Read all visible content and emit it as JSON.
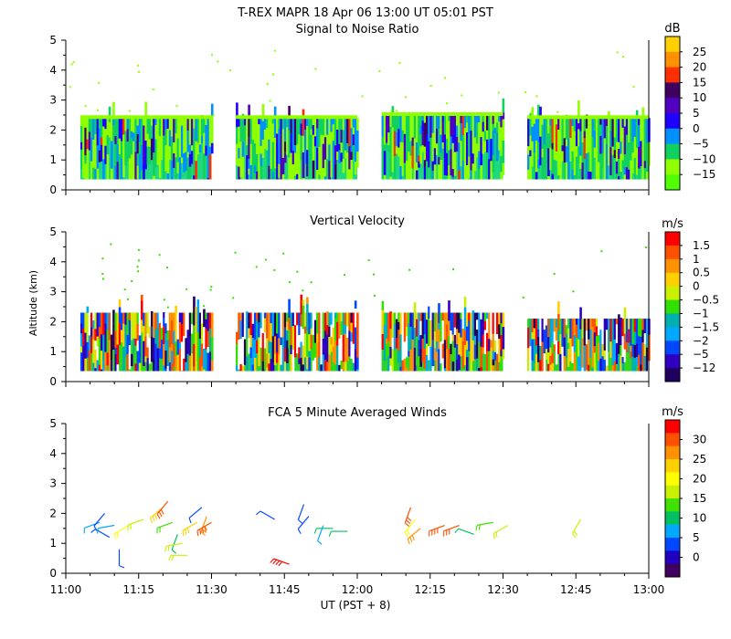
{
  "title": "T-REX  MAPR 18 Apr 06  13:00 UT  05:01  PST",
  "x_axis": {
    "label": "UT  (PST + 8)",
    "ticks": [
      "11:00",
      "11:15",
      "11:30",
      "11:45",
      "12:00",
      "12:15",
      "12:30",
      "12:45",
      "13:00"
    ],
    "range_minutes": [
      0,
      120
    ]
  },
  "y_axis": {
    "label": "Altitude (km)",
    "ticks": [
      "0",
      "1",
      "2",
      "3",
      "4",
      "5"
    ],
    "range": [
      0,
      5
    ]
  },
  "colors": {
    "scale": [
      "#90ff00",
      "#30e000",
      "#10c880",
      "#00a8ff",
      "#0048ff",
      "#2000ff",
      "#5000c0",
      "#400060",
      "#ff2000",
      "#ff7000",
      "#ffb000",
      "#ffe000",
      "#ffff00"
    ],
    "background": "#ffffff"
  },
  "chart_data": [
    {
      "type": "heatmap",
      "title": "Signal to Noise Ratio",
      "unit": "dB",
      "colorbar": {
        "labels": [
          "25",
          "20",
          "15",
          "10",
          "5",
          "0",
          "−5",
          "−10",
          "−15"
        ],
        "colors": [
          "#ffd000",
          "#ff9000",
          "#ff3000",
          "#400060",
          "#5000c0",
          "#2000ff",
          "#0090ff",
          "#10d060",
          "#90ff00",
          "#50ff00"
        ]
      },
      "blocks": [
        {
          "start_min": 3,
          "end_min": 30,
          "top_km": 2.4
        },
        {
          "start_min": 35,
          "end_min": 60,
          "top_km": 2.4
        },
        {
          "start_min": 65,
          "end_min": 90,
          "top_km": 2.5
        },
        {
          "start_min": 95,
          "end_min": 120,
          "top_km": 2.4
        }
      ]
    },
    {
      "type": "heatmap",
      "title": "Vertical Velocity",
      "unit": "m/s",
      "colorbar": {
        "labels": [
          "1.5",
          "1",
          "0.5",
          "0",
          "−0.5",
          "−1",
          "−1.5",
          "−2",
          "−5",
          "−12"
        ],
        "colors": [
          "#ff0000",
          "#ff5000",
          "#ff9000",
          "#ffd000",
          "#c8f000",
          "#30e000",
          "#00b0b0",
          "#00a8ff",
          "#0048ff",
          "#3000c0",
          "#200060"
        ]
      },
      "blocks": [
        {
          "start_min": 3,
          "end_min": 30,
          "top_km": 2.3
        },
        {
          "start_min": 35,
          "end_min": 60,
          "top_km": 2.3
        },
        {
          "start_min": 65,
          "end_min": 90,
          "top_km": 2.3
        },
        {
          "start_min": 95,
          "end_min": 120,
          "top_km": 2.1
        }
      ]
    },
    {
      "type": "scatter",
      "title": "FCA 5 Minute Averaged Winds",
      "unit": "m/s",
      "colorbar": {
        "labels": [
          "30",
          "25",
          "20",
          "15",
          "10",
          "5",
          "0"
        ],
        "colors": [
          "#ff0000",
          "#ff5000",
          "#ff9000",
          "#ffd000",
          "#ffff00",
          "#c8f000",
          "#40e000",
          "#00c060",
          "#00a8ff",
          "#0048ff",
          "#2000c0",
          "#400060"
        ]
      },
      "winds": [
        {
          "t": 7,
          "alt": 1.7,
          "speed": 8,
          "dir": 250
        },
        {
          "t": 8,
          "alt": 2.0,
          "speed": 5,
          "dir": 220
        },
        {
          "t": 9,
          "alt": 1.2,
          "speed": 6,
          "dir": 300
        },
        {
          "t": 10,
          "alt": 1.6,
          "speed": 9,
          "dir": 260
        },
        {
          "t": 11,
          "alt": 0.8,
          "speed": 5,
          "dir": 180
        },
        {
          "t": 13,
          "alt": 1.6,
          "speed": 18,
          "dir": 240
        },
        {
          "t": 16,
          "alt": 1.8,
          "speed": 16,
          "dir": 250
        },
        {
          "t": 20,
          "alt": 2.2,
          "speed": 22,
          "dir": 230
        },
        {
          "t": 21,
          "alt": 2.4,
          "speed": 26,
          "dir": 220
        },
        {
          "t": 22,
          "alt": 1.7,
          "speed": 14,
          "dir": 250
        },
        {
          "t": 23,
          "alt": 1.3,
          "speed": 10,
          "dir": 200
        },
        {
          "t": 24,
          "alt": 1.0,
          "speed": 16,
          "dir": 260
        },
        {
          "t": 25,
          "alt": 0.6,
          "speed": 15,
          "dir": 270
        },
        {
          "t": 27,
          "alt": 1.7,
          "speed": 22,
          "dir": 240
        },
        {
          "t": 28,
          "alt": 2.2,
          "speed": 6,
          "dir": 230
        },
        {
          "t": 29,
          "alt": 1.9,
          "speed": 24,
          "dir": 200
        },
        {
          "t": 30,
          "alt": 1.7,
          "speed": 28,
          "dir": 240
        },
        {
          "t": 43,
          "alt": 1.8,
          "speed": 5,
          "dir": 300
        },
        {
          "t": 46,
          "alt": 0.3,
          "speed": 30,
          "dir": 290
        },
        {
          "t": 49,
          "alt": 2.3,
          "speed": 6,
          "dir": 200
        },
        {
          "t": 50,
          "alt": 1.9,
          "speed": 5,
          "dir": 220
        },
        {
          "t": 53,
          "alt": 1.6,
          "speed": 8,
          "dir": 200
        },
        {
          "t": 55,
          "alt": 1.5,
          "speed": 10,
          "dir": 270
        },
        {
          "t": 58,
          "alt": 1.4,
          "speed": 10,
          "dir": 270
        },
        {
          "t": 71,
          "alt": 2.2,
          "speed": 26,
          "dir": 200
        },
        {
          "t": 72,
          "alt": 1.8,
          "speed": 18,
          "dir": 220
        },
        {
          "t": 73,
          "alt": 1.5,
          "speed": 24,
          "dir": 230
        },
        {
          "t": 78,
          "alt": 1.6,
          "speed": 28,
          "dir": 250
        },
        {
          "t": 81,
          "alt": 1.6,
          "speed": 26,
          "dir": 250
        },
        {
          "t": 84,
          "alt": 1.3,
          "speed": 10,
          "dir": 290
        },
        {
          "t": 88,
          "alt": 1.7,
          "speed": 14,
          "dir": 260
        },
        {
          "t": 91,
          "alt": 1.6,
          "speed": 16,
          "dir": 240
        },
        {
          "t": 106,
          "alt": 1.8,
          "speed": 16,
          "dir": 210
        }
      ]
    }
  ]
}
